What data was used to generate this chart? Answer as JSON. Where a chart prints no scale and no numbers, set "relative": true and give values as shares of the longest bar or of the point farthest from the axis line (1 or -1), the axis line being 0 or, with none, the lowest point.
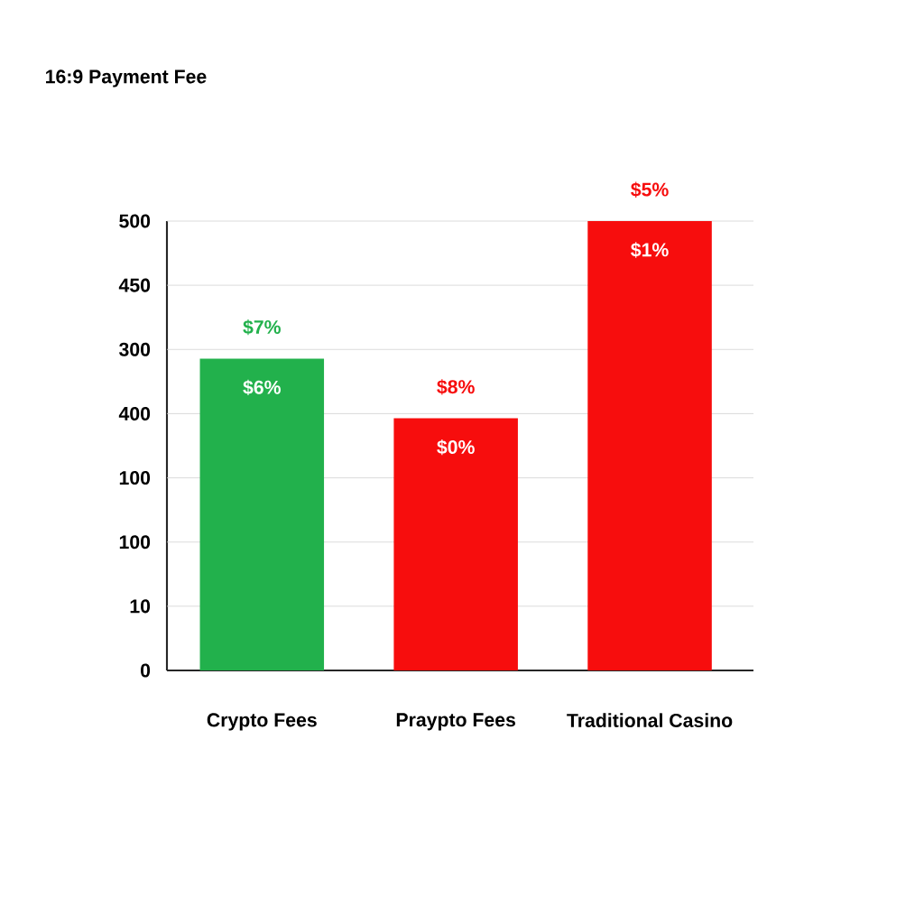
{
  "chart_data": {
    "type": "bar",
    "title": "16:9 Payment Fee",
    "categories": [
      "Crypto Fees",
      "Praypto Fees",
      "Traditional Casino"
    ],
    "values": [
      0.694,
      0.561,
      1
    ],
    "relative": true,
    "colors": [
      "#22b14c",
      "#f70d0d",
      "#f70d0d"
    ],
    "annotations": [
      "$7%",
      "$8%",
      "$5%",
      "$6%",
      "$0%",
      "$1%",
      "0",
      "10",
      "100",
      "100",
      "400",
      "300",
      "450",
      "500"
    ],
    "grid": "y"
  }
}
